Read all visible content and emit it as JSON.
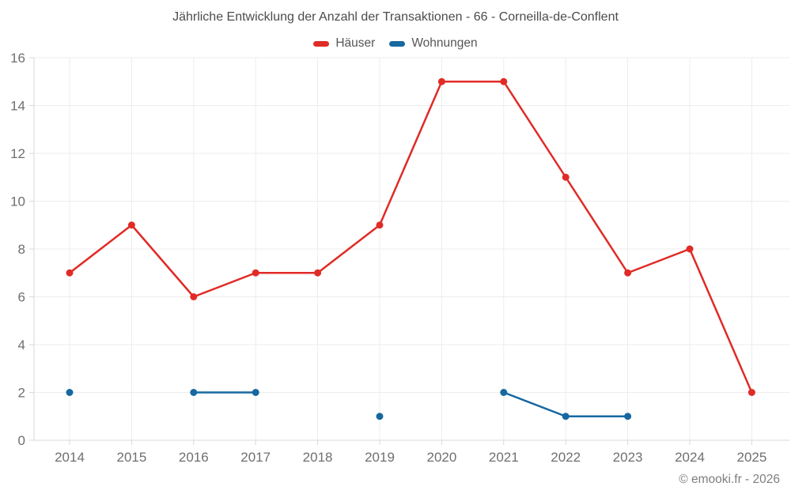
{
  "title": "Jährliche Entwicklung der Anzahl der Transaktionen - 66 - Corneilla-de-Conflent",
  "footer": "© emooki.fr - 2026",
  "colors": {
    "hauser_red": "#e02b26",
    "wohnungen_blue": "#1668a0",
    "gridline": "#ededed",
    "axis_line": "#d9d9d9",
    "axis_label": "#6f6f6f"
  },
  "chart_data": {
    "type": "line",
    "title": "Jährliche Entwicklung der Anzahl der Transaktionen - 66 - Corneilla-de-Conflent",
    "categories": [
      "2014",
      "2015",
      "2016",
      "2017",
      "2018",
      "2019",
      "2020",
      "2021",
      "2022",
      "2023",
      "2024",
      "2025"
    ],
    "series": [
      {
        "name": "Häuser",
        "color": "#e02b26",
        "values": [
          7,
          9,
          6,
          7,
          7,
          9,
          15,
          15,
          11,
          7,
          8,
          2
        ]
      },
      {
        "name": "Wohnungen",
        "color": "#1668a0",
        "values": [
          2,
          null,
          2,
          2,
          null,
          1,
          null,
          2,
          1,
          1,
          null,
          null
        ]
      }
    ],
    "xlabel": "",
    "ylabel": "",
    "ylim": [
      0,
      16
    ],
    "yticks": [
      0,
      2,
      4,
      6,
      8,
      10,
      12,
      14,
      16
    ],
    "grid": true,
    "legend_position": "top"
  }
}
